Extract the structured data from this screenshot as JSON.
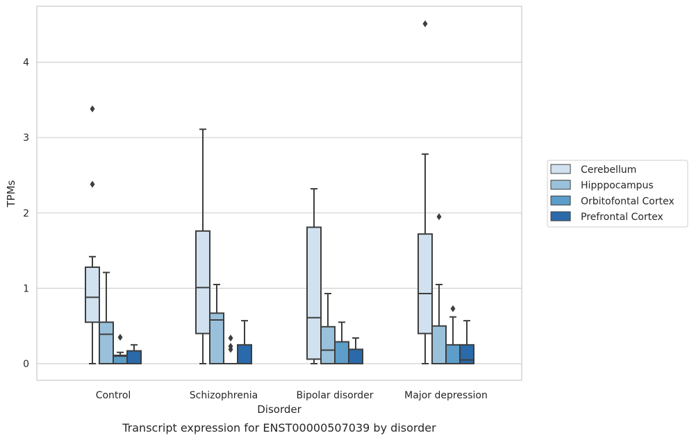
{
  "chart_data": {
    "type": "box",
    "caption": "Transcript expression for ENST00000507039 by disorder",
    "xlabel": "Disorder",
    "ylabel": "TPMs",
    "ylim": [
      -0.22,
      4.75
    ],
    "yticks": [
      0,
      1,
      2,
      3,
      4
    ],
    "grid": "horizontal",
    "legend_position": "right",
    "categories": [
      "Control",
      "Schizophrenia",
      "Bipolar disorder",
      "Major depression"
    ],
    "series": [
      {
        "name": "Cerebellum",
        "color": "#d1e1f0",
        "boxes": [
          {
            "whisker_low": 0,
            "q1": 0.55,
            "median": 0.88,
            "q3": 1.28,
            "whisker_high": 1.42,
            "outliers": [
              2.38,
              3.38
            ]
          },
          {
            "whisker_low": 0,
            "q1": 0.4,
            "median": 1.01,
            "q3": 1.76,
            "whisker_high": 3.11,
            "outliers": []
          },
          {
            "whisker_low": 0,
            "q1": 0.06,
            "median": 0.61,
            "q3": 1.81,
            "whisker_high": 2.32,
            "outliers": []
          },
          {
            "whisker_low": 0,
            "q1": 0.4,
            "median": 0.93,
            "q3": 1.72,
            "whisker_high": 2.78,
            "outliers": [
              4.51
            ]
          }
        ]
      },
      {
        "name": "Hipppocampus",
        "color": "#9ac1db",
        "boxes": [
          {
            "whisker_low": 0,
            "q1": 0,
            "median": 0.39,
            "q3": 0.55,
            "whisker_high": 1.21,
            "outliers": []
          },
          {
            "whisker_low": 0,
            "q1": 0,
            "median": 0.58,
            "q3": 0.67,
            "whisker_high": 1.05,
            "outliers": []
          },
          {
            "whisker_low": 0,
            "q1": 0,
            "median": 0.18,
            "q3": 0.49,
            "whisker_high": 0.93,
            "outliers": []
          },
          {
            "whisker_low": 0,
            "q1": 0,
            "median": 0,
            "q3": 0.5,
            "whisker_high": 1.05,
            "outliers": [
              1.95
            ]
          }
        ]
      },
      {
        "name": "Orbitofontal Cortex",
        "color": "#5c9dc9",
        "boxes": [
          {
            "whisker_low": 0,
            "q1": 0,
            "median": 0.1,
            "q3": 0.11,
            "whisker_high": 0.15,
            "outliers": [
              0.35
            ]
          },
          {
            "whisker_low": 0,
            "q1": 0,
            "median": 0,
            "q3": 0,
            "whisker_high": 0,
            "outliers": [
              0.19,
              0.23,
              0.34
            ]
          },
          {
            "whisker_low": 0,
            "q1": 0,
            "median": 0,
            "q3": 0.29,
            "whisker_high": 0.55,
            "outliers": []
          },
          {
            "whisker_low": 0,
            "q1": 0,
            "median": 0,
            "q3": 0.25,
            "whisker_high": 0.62,
            "outliers": [
              0.73
            ]
          }
        ]
      },
      {
        "name": "Prefrontal Cortex",
        "color": "#2a6aaa",
        "boxes": [
          {
            "whisker_low": 0,
            "q1": 0,
            "median": 0,
            "q3": 0.17,
            "whisker_high": 0.25,
            "outliers": []
          },
          {
            "whisker_low": 0,
            "q1": 0,
            "median": 0,
            "q3": 0.25,
            "whisker_high": 0.57,
            "outliers": []
          },
          {
            "whisker_low": 0,
            "q1": 0,
            "median": 0,
            "q3": 0.19,
            "whisker_high": 0.34,
            "outliers": []
          },
          {
            "whisker_low": 0,
            "q1": 0,
            "median": 0.05,
            "q3": 0.25,
            "whisker_high": 0.57,
            "outliers": []
          }
        ]
      }
    ]
  }
}
